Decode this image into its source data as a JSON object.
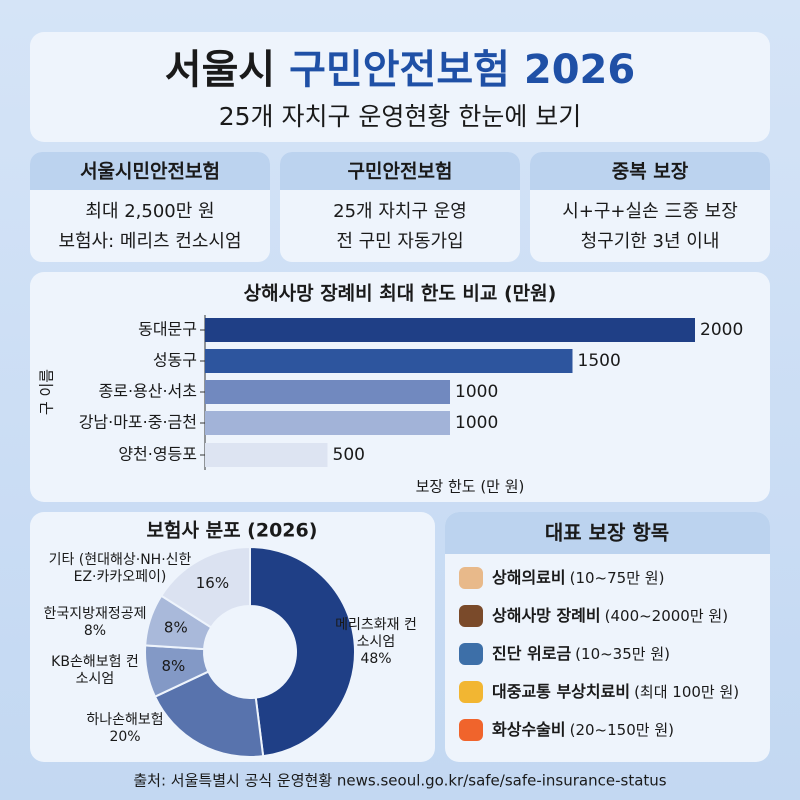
{
  "header": {
    "title_prefix": "서울시",
    "title_highlight": "구민안전보험 2026",
    "subtitle": "25개 자치구 운영현황 한눈에 보기"
  },
  "cards": [
    {
      "title": "서울시민안전보험",
      "lines": [
        "최대 2,500만 원",
        "보험사: 메리츠 컨소시엄"
      ]
    },
    {
      "title": "구민안전보험",
      "lines": [
        "25개 자치구 운영",
        "전 구민 자동가입"
      ]
    },
    {
      "title": "중복 보장",
      "lines": [
        "시+구+실손 三중 보장",
        "청구기한 3년 이내"
      ]
    }
  ],
  "chart_data": [
    {
      "type": "bar",
      "orientation": "horizontal",
      "title": "상해사망 장례비 최대 한도 비교 (만원)",
      "categories": [
        "동대문구",
        "성동구",
        "종로·용산·서초",
        "강남·마포·중·금천",
        "양천·영등포"
      ],
      "values": [
        2000,
        1500,
        1000,
        1000,
        500
      ],
      "colors": [
        "#1f3f86",
        "#2d559e",
        "#7189bf",
        "#a2b3d8",
        "#dde4f2"
      ],
      "xlim": [
        0,
        2000
      ],
      "xlabel": "보장 한도 (만 원)",
      "ylabel": "구 이름"
    },
    {
      "type": "donut",
      "title": "보험사 분포 (2026)",
      "categories": [
        "메리츠화재 컨소시엄",
        "하나손해보험",
        "KB손해보험 컨소시엄",
        "한국지방재정공제",
        "기타 (현대해상·NH·신한EZ·카카오페이)"
      ],
      "values": [
        48,
        20,
        8,
        8,
        16
      ],
      "value_labels": [
        "48%",
        "20%",
        "8%",
        "8%",
        "16%"
      ],
      "colors": [
        "#1f3f86",
        "#5873ad",
        "#8399c6",
        "#a9b9da",
        "#dbe2f1"
      ]
    }
  ],
  "coverage": {
    "title": "대표 보장 항목",
    "items": [
      {
        "name": "상해의료비",
        "detail": "(10~75만 원)"
      },
      {
        "name": "상해사망 장례비",
        "detail": "(400~2000만 원)"
      },
      {
        "name": "진단 위로금",
        "detail": "(10~35만 원)"
      },
      {
        "name": "대중교통 부상치료비",
        "detail": "(최대 100만 원)"
      },
      {
        "name": "화상수술비",
        "detail": "(20~150만 원)"
      }
    ]
  },
  "footer": "출처: 서울특별시 공식 운영현황 news.seoul.go.kr/safe/safe-insurance-status"
}
